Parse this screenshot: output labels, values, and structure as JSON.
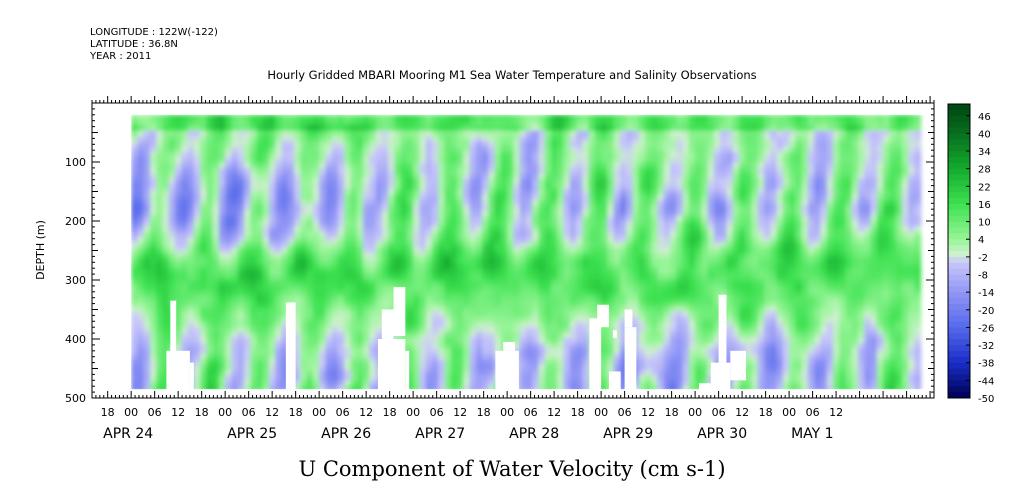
{
  "header": {
    "longitude": "LONGITUDE : 122W(-122)",
    "latitude": "LATITUDE : 36.8N",
    "year": "YEAR : 2011",
    "title": "Hourly Gridded MBARI Mooring M1 Sea Water Temperature and Salinity Observations"
  },
  "chart_data": {
    "type": "heatmap",
    "title": "Hourly Gridded MBARI Mooring M1 Sea Water Temperature and Salinity Observations",
    "xlabel": "U Component of Water Velocity (cm s-1)",
    "ylabel": "DEPTH (m)",
    "x_range_hours": [
      -10,
      205
    ],
    "y_range": [
      0,
      500
    ],
    "y_inverted": true,
    "y_ticks": [
      100,
      200,
      300,
      400,
      500
    ],
    "hour_ticks": [
      "18",
      "00",
      "06",
      "12",
      "18",
      "00",
      "06",
      "12",
      "18",
      "00",
      "06",
      "12",
      "18",
      "00",
      "06",
      "12",
      "18",
      "00",
      "06",
      "12",
      "18",
      "00",
      "06",
      "12",
      "18",
      "00",
      "06",
      "12",
      "18",
      "00",
      "06",
      "12"
    ],
    "date_labels": [
      "APR 24",
      "APR 25",
      "APR 26",
      "APR 27",
      "APR 28",
      "APR 29",
      "APR 30",
      "MAY  1"
    ],
    "colorbar": {
      "levels": [
        46,
        40,
        34,
        28,
        22,
        16,
        10,
        4,
        -2,
        -8,
        -14,
        -20,
        -26,
        -32,
        -38,
        -44,
        -50
      ],
      "range": [
        -50,
        50
      ]
    },
    "data_depth_range": [
      20,
      485
    ],
    "data_time_range_hours": [
      0,
      200
    ]
  }
}
